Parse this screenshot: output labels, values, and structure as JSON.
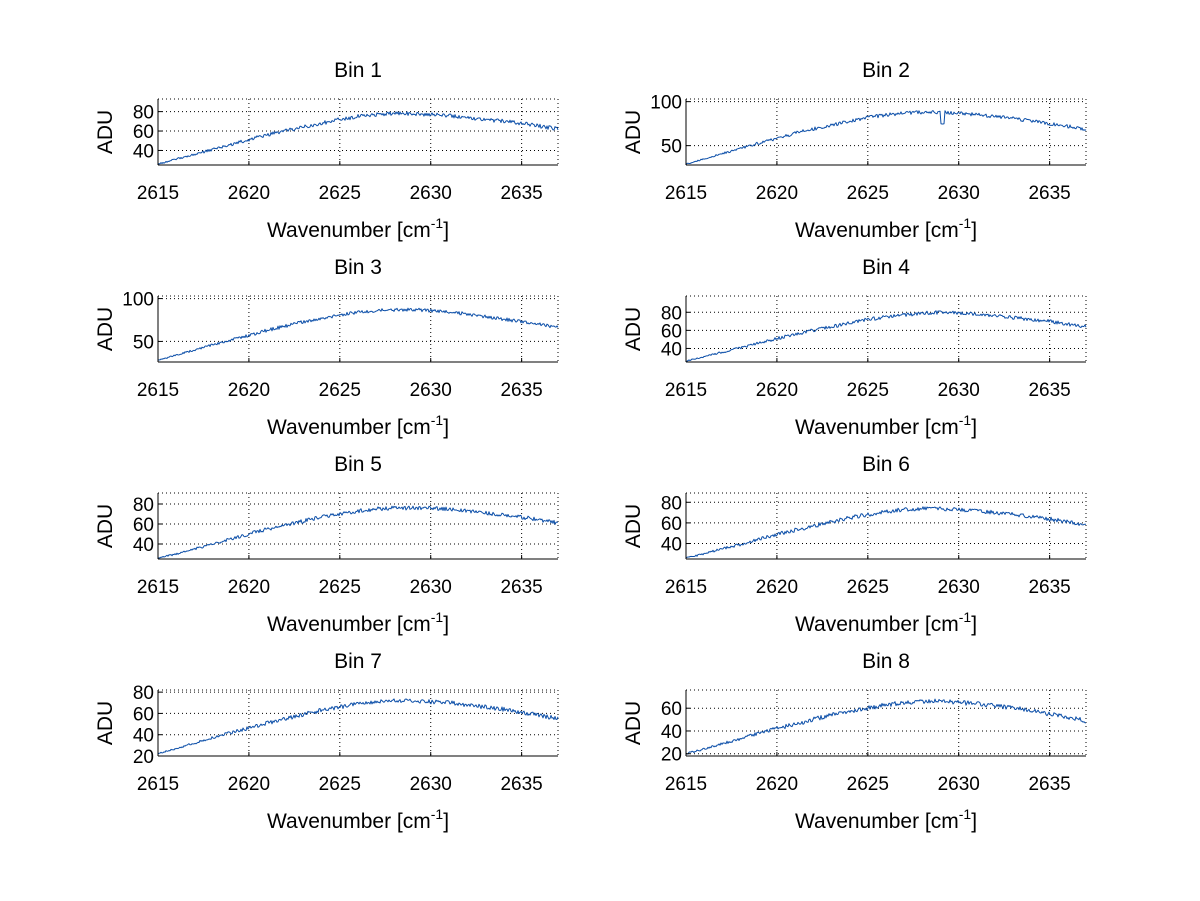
{
  "figure": {
    "series_color": "#0b4ea8",
    "grid": true
  },
  "chart_data": [
    {
      "type": "line",
      "title": "Bin 1",
      "xlabel": "Wavenumber [cm",
      "xlabel_sup": "-1",
      "xlabel_tail": "]",
      "ylabel": "ADU",
      "xlim": [
        2615,
        2637
      ],
      "ylim": [
        25,
        93
      ],
      "xticks": [
        2615,
        2620,
        2625,
        2630,
        2635
      ],
      "yticks": [
        40,
        60,
        80
      ],
      "x": [
        2615,
        2616,
        2617,
        2618,
        2619,
        2620,
        2621,
        2622,
        2623,
        2624,
        2625,
        2626,
        2627,
        2628,
        2629,
        2630,
        2631,
        2632,
        2633,
        2634,
        2635,
        2636,
        2637
      ],
      "values": [
        26,
        31,
        36,
        41,
        46,
        51,
        56,
        60,
        64,
        68,
        72,
        75,
        77,
        78,
        78,
        77,
        76,
        74,
        72,
        70,
        68,
        65,
        62
      ]
    },
    {
      "type": "line",
      "title": "Bin 2",
      "xlabel": "Wavenumber [cm",
      "xlabel_sup": "-1",
      "xlabel_tail": "]",
      "ylabel": "ADU",
      "xlim": [
        2615,
        2637
      ],
      "ylim": [
        28,
        103
      ],
      "xticks": [
        2615,
        2620,
        2625,
        2630,
        2635
      ],
      "yticks": [
        50,
        100
      ],
      "x": [
        2615,
        2616,
        2617,
        2618,
        2619,
        2620,
        2621,
        2622,
        2623,
        2624,
        2625,
        2626,
        2627,
        2628,
        2629,
        2630,
        2631,
        2632,
        2633,
        2634,
        2635,
        2636,
        2637
      ],
      "values": [
        29,
        35,
        41,
        47,
        53,
        58,
        64,
        69,
        73,
        78,
        82,
        85,
        87,
        88,
        88,
        87,
        85,
        83,
        81,
        78,
        75,
        72,
        68
      ]
    },
    {
      "type": "line",
      "title": "Bin 3",
      "xlabel": "Wavenumber [cm",
      "xlabel_sup": "-1",
      "xlabel_tail": "]",
      "ylabel": "ADU",
      "xlim": [
        2615,
        2637
      ],
      "ylim": [
        26,
        103
      ],
      "xticks": [
        2615,
        2620,
        2625,
        2630,
        2635
      ],
      "yticks": [
        50,
        100
      ],
      "x": [
        2615,
        2616,
        2617,
        2618,
        2619,
        2620,
        2621,
        2622,
        2623,
        2624,
        2625,
        2626,
        2627,
        2628,
        2629,
        2630,
        2631,
        2632,
        2633,
        2634,
        2635,
        2636,
        2637
      ],
      "values": [
        28,
        34,
        40,
        46,
        52,
        57,
        63,
        68,
        73,
        77,
        81,
        84,
        86,
        87,
        87,
        86,
        84,
        82,
        79,
        76,
        73,
        70,
        66
      ]
    },
    {
      "type": "line",
      "title": "Bin 4",
      "xlabel": "Wavenumber [cm",
      "xlabel_sup": "-1",
      "xlabel_tail": "]",
      "ylabel": "ADU",
      "xlim": [
        2615,
        2637
      ],
      "ylim": [
        25,
        98
      ],
      "xticks": [
        2615,
        2620,
        2625,
        2630,
        2635
      ],
      "yticks": [
        40,
        60,
        80
      ],
      "x": [
        2615,
        2616,
        2617,
        2618,
        2619,
        2620,
        2621,
        2622,
        2623,
        2624,
        2625,
        2626,
        2627,
        2628,
        2629,
        2630,
        2631,
        2632,
        2633,
        2634,
        2635,
        2636,
        2637
      ],
      "values": [
        26,
        31,
        36,
        41,
        46,
        51,
        56,
        60,
        64,
        68,
        72,
        75,
        77,
        79,
        80,
        79,
        78,
        76,
        74,
        72,
        70,
        67,
        64
      ]
    },
    {
      "type": "line",
      "title": "Bin 5",
      "xlabel": "Wavenumber [cm",
      "xlabel_sup": "-1",
      "xlabel_tail": "]",
      "ylabel": "ADU",
      "xlim": [
        2615,
        2637
      ],
      "ylim": [
        25,
        91
      ],
      "xticks": [
        2615,
        2620,
        2625,
        2630,
        2635
      ],
      "yticks": [
        40,
        60,
        80
      ],
      "x": [
        2615,
        2616,
        2617,
        2618,
        2619,
        2620,
        2621,
        2622,
        2623,
        2624,
        2625,
        2626,
        2627,
        2628,
        2629,
        2630,
        2631,
        2632,
        2633,
        2634,
        2635,
        2636,
        2637
      ],
      "values": [
        26,
        30,
        35,
        40,
        45,
        50,
        55,
        59,
        63,
        67,
        70,
        73,
        75,
        76,
        76,
        76,
        75,
        73,
        71,
        69,
        67,
        64,
        61
      ]
    },
    {
      "type": "line",
      "title": "Bin 6",
      "xlabel": "Wavenumber [cm",
      "xlabel_sup": "-1",
      "xlabel_tail": "]",
      "ylabel": "ADU",
      "xlim": [
        2615,
        2637
      ],
      "ylim": [
        25,
        89
      ],
      "xticks": [
        2615,
        2620,
        2625,
        2630,
        2635
      ],
      "yticks": [
        40,
        60,
        80
      ],
      "x": [
        2615,
        2616,
        2617,
        2618,
        2619,
        2620,
        2621,
        2622,
        2623,
        2624,
        2625,
        2626,
        2627,
        2628,
        2629,
        2630,
        2631,
        2632,
        2633,
        2634,
        2635,
        2636,
        2637
      ],
      "values": [
        26,
        30,
        35,
        39,
        44,
        49,
        53,
        57,
        61,
        65,
        68,
        71,
        73,
        74,
        74,
        73,
        72,
        70,
        68,
        66,
        64,
        61,
        58
      ]
    },
    {
      "type": "line",
      "title": "Bin 7",
      "xlabel": "Wavenumber [cm",
      "xlabel_sup": "-1",
      "xlabel_tail": "]",
      "ylabel": "ADU",
      "xlim": [
        2615,
        2637
      ],
      "ylim": [
        20,
        82
      ],
      "xticks": [
        2615,
        2620,
        2625,
        2630,
        2635
      ],
      "yticks": [
        20,
        40,
        60,
        80
      ],
      "x": [
        2615,
        2616,
        2617,
        2618,
        2619,
        2620,
        2621,
        2622,
        2623,
        2624,
        2625,
        2626,
        2627,
        2628,
        2629,
        2630,
        2631,
        2632,
        2633,
        2634,
        2635,
        2636,
        2637
      ],
      "values": [
        22,
        27,
        32,
        37,
        42,
        46,
        51,
        55,
        59,
        63,
        66,
        69,
        71,
        72,
        72,
        71,
        70,
        68,
        66,
        64,
        61,
        58,
        55
      ]
    },
    {
      "type": "line",
      "title": "Bin 8",
      "xlabel": "Wavenumber [cm",
      "xlabel_sup": "-1",
      "xlabel_tail": "]",
      "ylabel": "ADU",
      "xlim": [
        2615,
        2637
      ],
      "ylim": [
        18,
        76
      ],
      "xticks": [
        2615,
        2620,
        2625,
        2630,
        2635
      ],
      "yticks": [
        20,
        40,
        60
      ],
      "x": [
        2615,
        2616,
        2617,
        2618,
        2619,
        2620,
        2621,
        2622,
        2623,
        2624,
        2625,
        2626,
        2627,
        2628,
        2629,
        2630,
        2631,
        2632,
        2633,
        2634,
        2635,
        2636,
        2637
      ],
      "values": [
        20,
        24,
        29,
        33,
        38,
        42,
        46,
        50,
        54,
        57,
        60,
        63,
        65,
        66,
        66,
        65,
        64,
        62,
        60,
        58,
        55,
        52,
        49
      ]
    }
  ]
}
